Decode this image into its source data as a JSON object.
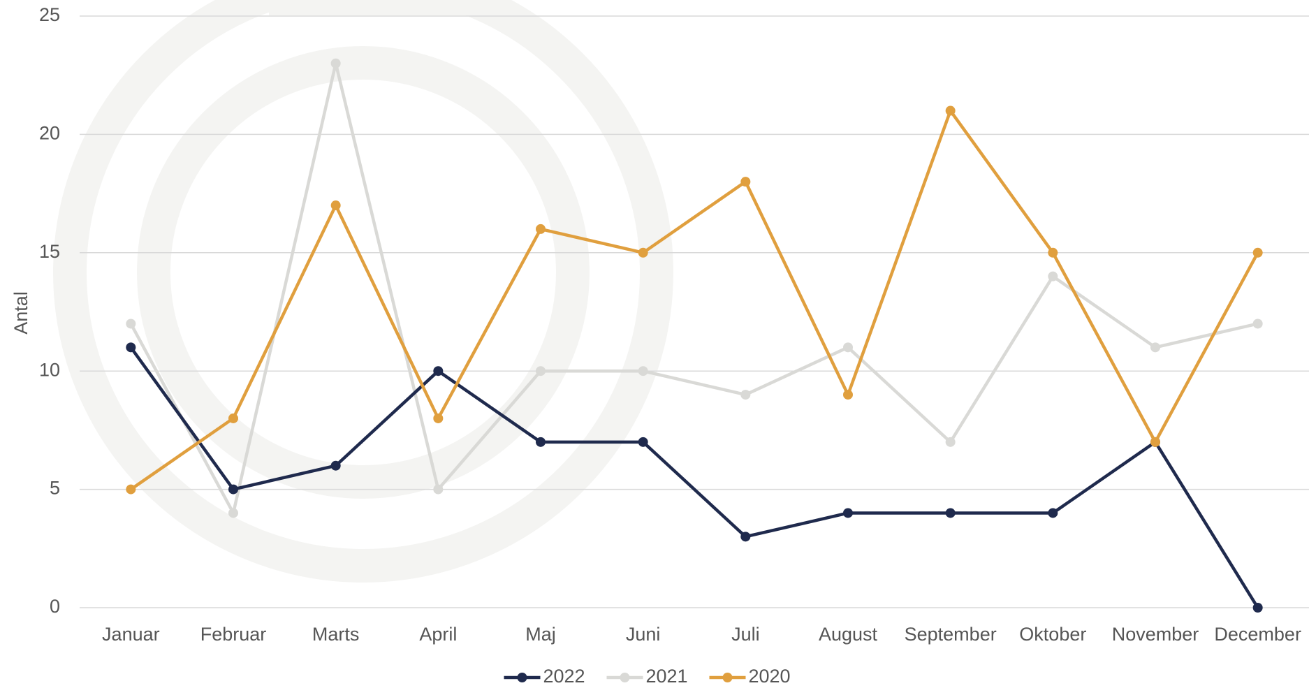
{
  "chart_data": {
    "type": "line",
    "y_axis_label": "Antal",
    "categories": [
      "Januar",
      "Februar",
      "Marts",
      "April",
      "Maj",
      "Juni",
      "Juli",
      "August",
      "September",
      "Oktober",
      "November",
      "December"
    ],
    "series": [
      {
        "name": "2022",
        "color": "#1f2a4d",
        "values": [
          11,
          5,
          6,
          10,
          7,
          7,
          3,
          4,
          4,
          4,
          7,
          0
        ]
      },
      {
        "name": "2021",
        "color": "#d9d9d6",
        "values": [
          12,
          4,
          23,
          5,
          10,
          10,
          9,
          11,
          7,
          14,
          11,
          12
        ]
      },
      {
        "name": "2020",
        "color": "#e09f3e",
        "values": [
          5,
          8,
          17,
          8,
          16,
          15,
          18,
          9,
          21,
          15,
          7,
          15
        ]
      }
    ],
    "ylim": [
      0,
      25
    ],
    "yticks": [
      0,
      5,
      10,
      15,
      20,
      25
    ],
    "grid": true,
    "legend": "bottom"
  }
}
